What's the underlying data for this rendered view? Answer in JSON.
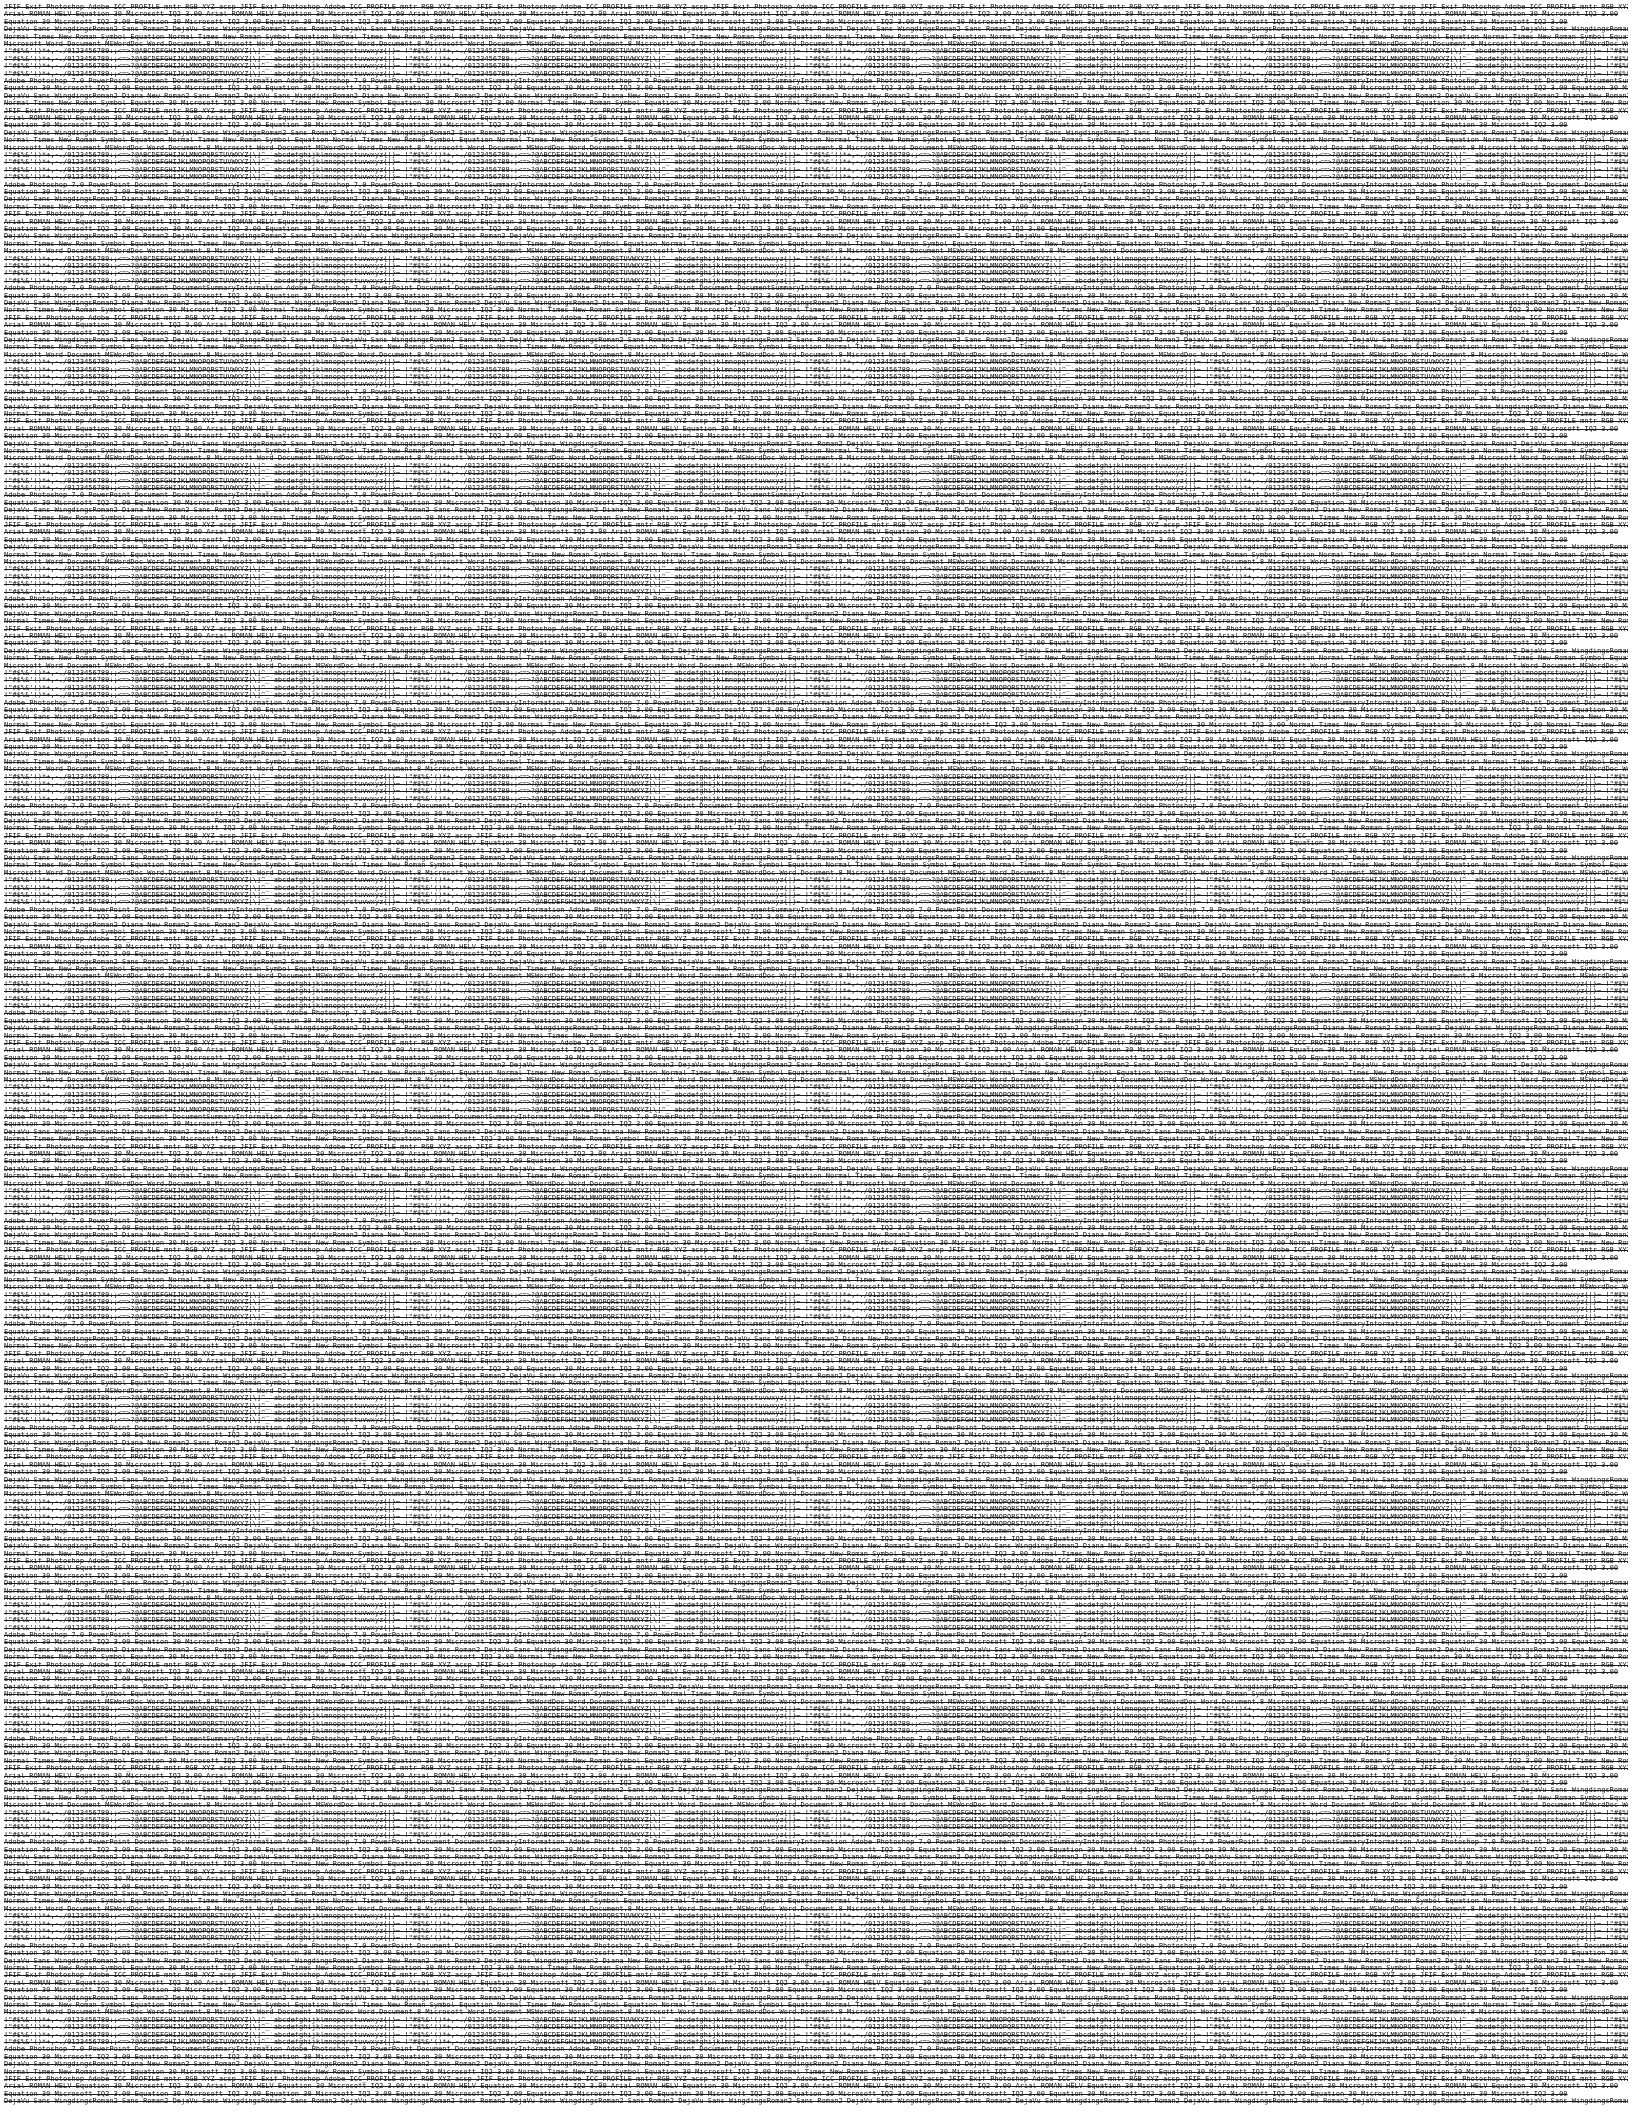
{
  "page": {
    "lines": [
      "JFIF  Exif  Photoshop  Adobe  ICC_PROFILE  mntr RGB XYZ acsp",
      "Arial  ROMAN  HELV  Equation 30  Microsoft  IQ2  3.00",
      "Equation 30   Microsoft IQ2  3.00",
      "DejaVu Sans  WingdingsRoman2  Sans  Roman2",
      "Normal  Times New Roman  Symbol  Equation",
      "Microsoft Word Document  MSWordDoc  Word.Document.8",
      "!\"#$%&'()*+,-./0123456789:;<=>?@ABCDEFGHIJKLMNOPQRSTUVWXYZ[\\]^_`abcdefghijklmnopqrstuvwxyz{|}~",
      "!\"#$%&'()*+,-./0123456789:;<=>?@ABCDEFGHIJKLMNOPQRSTUVWXYZ[\\]^_`abcdefghijklmnopqrstuvwxyz{|}~",
      "!\"#$%&'()*+,-./0123456789:;<=>?@ABCDEFGHIJKLMNOPQRSTUVWXYZ[\\]^_`abcdefghijklmnopqrstuvwxyz{|}~",
      "!\"#$%&'()*+,-./0123456789:;<=>?@ABCDEFGHIJKLMNOPQRSTUVWXYZ[\\]^_`abcdefghijklmnopqrstuvwxyz{|}~",
      "Adobe Photoshop 7.0  PowerPoint Document  DocumentSummaryInformation",
      "Equation 30  Microsoft IQ2  3.00  Equation 30  Microsoft IQ2  3.00",
      "DejaVu Sans  WingdingsRoman2  Diana New Roman2  Sans  Roman2",
      "Normal  Times New Roman  Symbol  Equation 30  Microsoft IQ2  3.00"
    ]
  }
}
